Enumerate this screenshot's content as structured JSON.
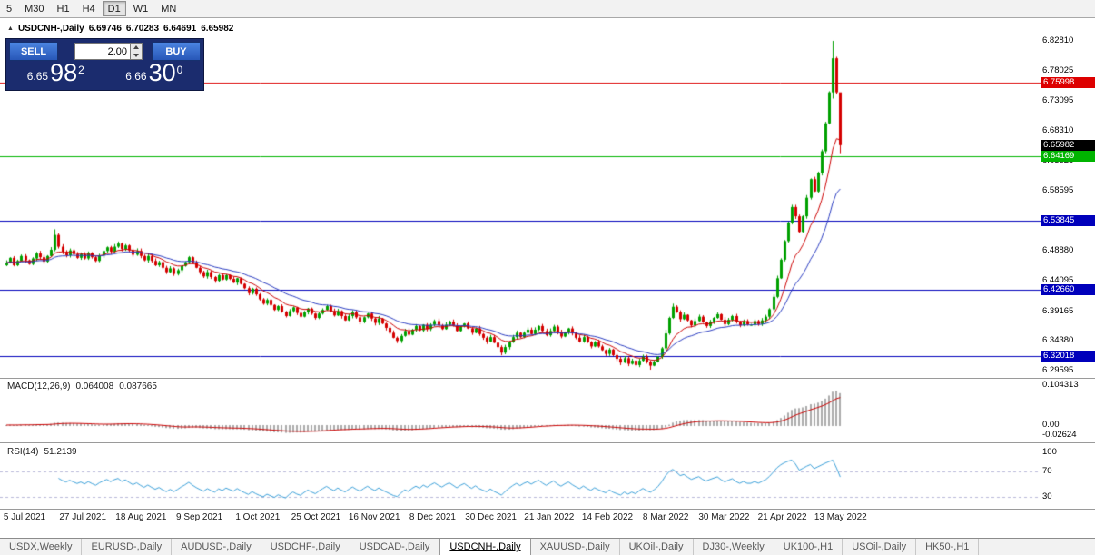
{
  "toolbar": {
    "periods": [
      {
        "label": "5",
        "active": false
      },
      {
        "label": "M30",
        "active": false
      },
      {
        "label": "H1",
        "active": false
      },
      {
        "label": "H4",
        "active": false
      },
      {
        "label": "D1",
        "active": true
      },
      {
        "label": "W1",
        "active": false
      },
      {
        "label": "MN",
        "active": false
      }
    ]
  },
  "chart_header": {
    "collapse_icon": "▲",
    "symbol": "USDCNH-,Daily",
    "open": "6.69746",
    "high": "6.70283",
    "low": "6.64691",
    "close": "6.65982"
  },
  "trade_panel": {
    "sell_label": "SELL",
    "buy_label": "BUY",
    "volume": "2.00",
    "sell_price": {
      "head": "6.65",
      "big": "98",
      "sup": "2"
    },
    "buy_price": {
      "head": "6.66",
      "big": "30",
      "sup": "0"
    }
  },
  "colors": {
    "candle_up": "#00a000",
    "candle_down": "#d40000",
    "macd_hist": "#ababab",
    "macd_signal": "#cc0000",
    "rsi_line": "#3a9fd8",
    "rsi_level": "#b8b8d8",
    "current_bg": "#000000"
  },
  "chart_data": {
    "type": "candlestick",
    "symbol": "USDCNH-",
    "timeframe": "Daily",
    "ohlc": {
      "open": 6.69746,
      "high": 6.70283,
      "low": 6.64691,
      "close": 6.65982
    },
    "x_labels": [
      "5 Jul 2021",
      "27 Jul 2021",
      "18 Aug 2021",
      "9 Sep 2021",
      "1 Oct 2021",
      "25 Oct 2021",
      "16 Nov 2021",
      "8 Dec 2021",
      "30 Dec 2021",
      "21 Jan 2022",
      "14 Feb 2022",
      "8 Mar 2022",
      "30 Mar 2022",
      "21 Apr 2022",
      "13 May 2022"
    ],
    "y_ticks": [
      "6.82810",
      "6.78025",
      "6.73095",
      "6.68310",
      "6.63525",
      "6.58595",
      "6.48880",
      "6.44095",
      "6.39165",
      "6.34380",
      "6.29595"
    ],
    "levels": [
      {
        "price": 6.75998,
        "label": "6.75998",
        "color": "#dd0000"
      },
      {
        "price": 6.64169,
        "label": "6.64169",
        "color": "#00b400"
      },
      {
        "price": 6.53845,
        "label": "6.53845",
        "color": "#0000bb"
      },
      {
        "price": 6.4266,
        "label": "6.42660",
        "color": "#0000bb"
      },
      {
        "price": 6.32018,
        "label": "6.32018",
        "color": "#0000bb"
      }
    ],
    "current_price": {
      "price": 6.65982,
      "label": "6.65982"
    },
    "ma": {
      "fast": {
        "period": 10,
        "color": "#cc0000"
      },
      "slow": {
        "period": 22,
        "color": "#2a3cc0"
      }
    },
    "macd": {
      "label": "MACD(12,26,9)",
      "value_main": "0.064008",
      "value_signal": "0.087665",
      "axis": [
        {
          "t": "0.104313",
          "v": 0.104313
        },
        {
          "t": "0.00",
          "v": 0
        },
        {
          "t": "-0.02624",
          "v": -0.02624
        }
      ]
    },
    "rsi": {
      "label": "RSI(14)",
      "value": "51.2139",
      "period": 14,
      "axis": [
        {
          "t": "100",
          "v": 100
        },
        {
          "t": "70",
          "v": 70
        },
        {
          "t": "30",
          "v": 30
        }
      ],
      "levels": [
        70,
        30
      ]
    },
    "layout": {
      "x0": 7,
      "pitch": 4.1,
      "y_max": 6.8647,
      "y_min": 6.2843,
      "macd_zero_y": 51,
      "macd_scale": 422,
      "rsi_top": 10,
      "rsi_scale": 0.7,
      "date_x0": 27,
      "date_step": 64.2
    },
    "closes": [
      6.47,
      6.478,
      6.466,
      6.473,
      6.481,
      6.474,
      6.468,
      6.477,
      6.485,
      6.479,
      6.472,
      6.481,
      6.491,
      6.515,
      6.496,
      6.488,
      6.482,
      6.49,
      6.484,
      6.478,
      6.484,
      6.477,
      6.486,
      6.479,
      6.473,
      6.482,
      6.489,
      6.495,
      6.488,
      6.496,
      6.501,
      6.492,
      6.498,
      6.49,
      6.483,
      6.489,
      6.481,
      6.474,
      6.481,
      6.473,
      6.466,
      6.471,
      6.462,
      6.455,
      6.461,
      6.452,
      6.458,
      6.465,
      6.471,
      6.479,
      6.47,
      6.462,
      6.455,
      6.448,
      6.455,
      6.447,
      6.441,
      6.45,
      6.443,
      6.45,
      6.444,
      6.438,
      6.445,
      6.436,
      6.429,
      6.421,
      6.428,
      6.419,
      6.411,
      6.404,
      6.41,
      6.402,
      6.394,
      6.4,
      6.391,
      6.384,
      6.392,
      6.398,
      6.389,
      6.383,
      6.39,
      6.396,
      6.388,
      6.381,
      6.388,
      6.394,
      6.4,
      6.392,
      6.385,
      6.392,
      6.384,
      6.377,
      6.384,
      6.39,
      6.382,
      6.375,
      6.382,
      6.388,
      6.38,
      6.373,
      6.38,
      6.372,
      6.365,
      6.357,
      6.349,
      6.344,
      6.352,
      6.36,
      6.354,
      6.362,
      6.368,
      6.361,
      6.37,
      6.363,
      6.37,
      6.376,
      6.369,
      6.363,
      6.37,
      6.375,
      6.368,
      6.36,
      6.367,
      6.372,
      6.364,
      6.357,
      6.364,
      6.355,
      6.349,
      6.343,
      6.35,
      6.341,
      6.334,
      6.325,
      6.334,
      6.342,
      6.35,
      6.357,
      6.35,
      6.357,
      6.362,
      6.355,
      6.362,
      6.368,
      6.36,
      6.353,
      6.36,
      6.367,
      6.358,
      6.351,
      6.358,
      6.364,
      6.356,
      6.349,
      6.343,
      6.35,
      6.342,
      6.335,
      6.342,
      6.335,
      6.329,
      6.323,
      6.33,
      6.321,
      6.315,
      6.309,
      6.316,
      6.307,
      6.312,
      6.305,
      6.312,
      6.318,
      6.31,
      6.304,
      6.31,
      6.318,
      6.332,
      6.356,
      6.381,
      6.399,
      6.39,
      6.379,
      6.386,
      6.377,
      6.369,
      6.376,
      6.383,
      6.374,
      6.368,
      6.375,
      6.381,
      6.387,
      6.378,
      6.371,
      6.378,
      6.384,
      6.375,
      6.369,
      6.376,
      6.37,
      6.37,
      6.376,
      6.371,
      6.377,
      6.383,
      6.395,
      6.415,
      6.445,
      6.475,
      6.505,
      6.535,
      6.56,
      6.545,
      6.52,
      6.545,
      6.575,
      6.605,
      6.585,
      6.615,
      6.65,
      6.695,
      6.745,
      6.8,
      6.745,
      6.6598
    ],
    "wick_overrides": {
      "13": {
        "h": 6.524
      },
      "173": {
        "l": 6.2975
      },
      "177": {
        "h": 6.362
      },
      "179": {
        "h": 6.404
      },
      "222": {
        "h": 6.8281,
        "l": 6.735
      },
      "224": {
        "h": 6.705,
        "l": 6.6469
      }
    }
  },
  "tabs": [
    {
      "label": "USDX,Weekly",
      "active": false
    },
    {
      "label": "EURUSD-,Daily",
      "active": false
    },
    {
      "label": "AUDUSD-,Daily",
      "active": false
    },
    {
      "label": "USDCHF-,Daily",
      "active": false
    },
    {
      "label": "USDCAD-,Daily",
      "active": false
    },
    {
      "label": "USDCNH-,Daily",
      "active": true
    },
    {
      "label": "XAUUSD-,Daily",
      "active": false
    },
    {
      "label": "UKOil-,Daily",
      "active": false
    },
    {
      "label": "DJ30-,Weekly",
      "active": false
    },
    {
      "label": "UK100-,H1",
      "active": false
    },
    {
      "label": "USOil-,Daily",
      "active": false
    },
    {
      "label": "HK50-,H1",
      "active": false
    }
  ]
}
